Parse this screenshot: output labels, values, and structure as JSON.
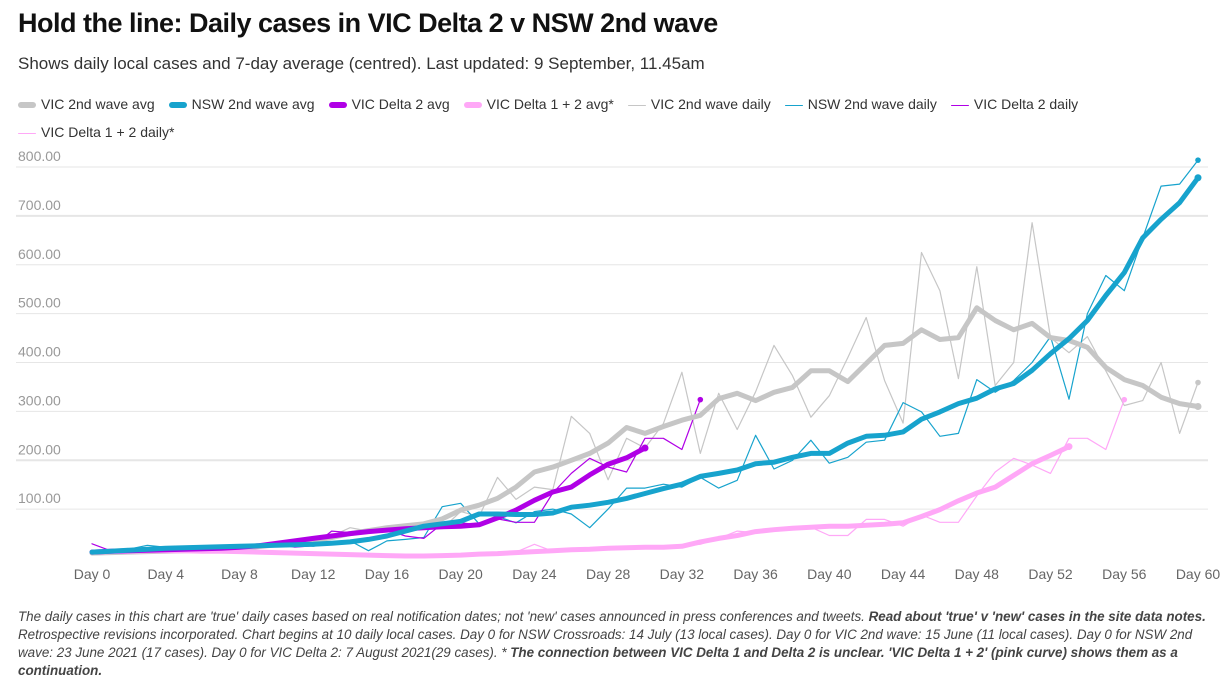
{
  "title": "Hold the line: Daily cases in VIC Delta 2 v NSW 2nd wave",
  "subtitle": "Shows daily local cases and 7-day average (centred). Last updated: 9 September, 11.45am",
  "notes": {
    "p1": "The daily cases in this chart are 'true' daily cases based on real notification dates; not 'new' cases announced in press conferences and tweets. ",
    "b1": "Read about 'true' v 'new' cases in the site data notes.",
    "p2": " Retrospective revisions incorporated. Chart begins at 10 daily local cases. Day 0 for NSW Crossroads: 14 July (13 local cases). Day 0 for VIC 2nd wave: 15 June (11 local cases). Day 0 for NSW 2nd wave: 23 June 2021 (17 cases). Day 0 for VIC Delta 2: 7 August 2021(29 cases). * ",
    "b2": "The connection between VIC Delta 1 and Delta 2 is unclear. 'VIC Delta 1 + 2' (pink curve) shows them as a continuation."
  },
  "chart_data": {
    "type": "line",
    "title": "Hold the line: Daily cases in VIC Delta 2 v NSW 2nd wave",
    "xlabel": "",
    "ylabel": "",
    "xlim": [
      0,
      60
    ],
    "ylim": [
      0,
      800
    ],
    "x_ticks": [
      "Day 0",
      "Day 4",
      "Day 8",
      "Day 12",
      "Day 16",
      "Day 20",
      "Day 24",
      "Day 28",
      "Day 32",
      "Day 36",
      "Day 40",
      "Day 44",
      "Day 48",
      "Day 52",
      "Day 56",
      "Day 60"
    ],
    "y_ticks": [
      "100.00",
      "200.00",
      "300.00",
      "400.00",
      "500.00",
      "600.00",
      "700.00",
      "800.00"
    ],
    "grid": true,
    "legend_position": "top",
    "series": [
      {
        "name": "VIC 2nd wave avg",
        "color": "#c6c6c6",
        "kind": "avg",
        "values": [
          10,
          11,
          12,
          13,
          14,
          15,
          16,
          18,
          20,
          23,
          27,
          31,
          35,
          42,
          50,
          56,
          62,
          66,
          70,
          80,
          98,
          108,
          122,
          145,
          176,
          186,
          200,
          214,
          235,
          267,
          255,
          269,
          282,
          292,
          326,
          337,
          322,
          339,
          349,
          383,
          383,
          361,
          398,
          435,
          439,
          467,
          447,
          451,
          512,
          486,
          467,
          480,
          451,
          445,
          431,
          390,
          365,
          353,
          329,
          316,
          310
        ]
      },
      {
        "name": "NSW 2nd wave avg",
        "color": "#17a3cd",
        "kind": "avg",
        "values": [
          12,
          14,
          16,
          18,
          20,
          21,
          22,
          23,
          24,
          25,
          26,
          27,
          28,
          30,
          33,
          38,
          45,
          55,
          65,
          70,
          75,
          90,
          90,
          89,
          89,
          92,
          104,
          108,
          114,
          122,
          132,
          142,
          151,
          167,
          173,
          180,
          193,
          196,
          206,
          214,
          214,
          235,
          249,
          251,
          258,
          284,
          299,
          316,
          327,
          346,
          357,
          384,
          418,
          449,
          486,
          537,
          584,
          655,
          693,
          727,
          778
        ]
      },
      {
        "name": "VIC Delta 2 avg",
        "color": "#b000e6",
        "kind": "avg",
        "values": [
          12,
          14,
          15,
          16,
          17,
          18,
          19,
          20,
          22,
          25,
          30,
          35,
          40,
          45,
          50,
          54,
          57,
          60,
          62,
          64,
          65,
          68,
          82,
          98,
          118,
          135,
          145,
          170,
          192,
          205,
          225
        ]
      },
      {
        "name": "VIC Delta 1 + 2 avg*",
        "color": "#ffa8f7",
        "kind": "avg",
        "values": [
          12,
          13,
          14,
          15,
          15,
          15,
          14,
          14,
          13,
          12,
          11,
          10,
          9,
          8,
          7,
          6,
          5,
          4,
          4,
          5,
          6,
          8,
          9,
          11,
          13,
          15,
          17,
          18,
          20,
          21,
          22,
          22,
          24,
          33,
          40,
          46,
          54,
          58,
          61,
          63,
          65,
          65,
          67,
          69,
          72,
          85,
          99,
          117,
          133,
          145,
          169,
          193,
          210,
          228
        ]
      },
      {
        "name": "VIC 2nd wave daily",
        "color": "#c6c6c6",
        "kind": "daily",
        "values": [
          11,
          8,
          12,
          14,
          16,
          13,
          18,
          12,
          22,
          20,
          25,
          30,
          38,
          45,
          62,
          55,
          60,
          68,
          72,
          60,
          95,
          85,
          165,
          120,
          145,
          140,
          290,
          255,
          160,
          245,
          225,
          275,
          380,
          214,
          337,
          263,
          340,
          435,
          373,
          288,
          332,
          410,
          492,
          363,
          276,
          625,
          547,
          367,
          596,
          353,
          400,
          686,
          451,
          420,
          453,
          383,
          312,
          322,
          400,
          255,
          359
        ]
      },
      {
        "name": "NSW 2nd wave daily",
        "color": "#17a3cd",
        "kind": "daily",
        "values": [
          10,
          15,
          18,
          26,
          22,
          20,
          18,
          26,
          22,
          28,
          25,
          28,
          24,
          30,
          35,
          15,
          35,
          38,
          42,
          105,
          112,
          70,
          85,
          72,
          95,
          100,
          90,
          62,
          100,
          143,
          143,
          151,
          145,
          165,
          143,
          159,
          251,
          182,
          200,
          241,
          194,
          206,
          237,
          241,
          318,
          299,
          249,
          255,
          365,
          339,
          363,
          400,
          453,
          325,
          500,
          578,
          547,
          655,
          761,
          765,
          814
        ]
      },
      {
        "name": "VIC Delta 2 daily",
        "color": "#b000e6",
        "kind": "daily",
        "values": [
          29,
          15,
          12,
          18,
          14,
          16,
          20,
          18,
          22,
          20,
          28,
          22,
          25,
          55,
          52,
          55,
          58,
          45,
          40,
          70,
          72,
          68,
          80,
          73,
          73,
          133,
          173,
          204,
          186,
          176,
          245,
          245,
          222,
          324
        ]
      },
      {
        "name": "VIC Delta 1 + 2 daily*",
        "color": "#ffa8f7",
        "kind": "daily",
        "values": [
          10,
          12,
          16,
          14,
          13,
          17,
          15,
          12,
          14,
          11,
          12,
          9,
          10,
          7,
          8,
          6,
          5,
          4,
          3,
          6,
          5,
          9,
          8,
          12,
          28,
          14,
          16,
          20,
          18,
          22,
          21,
          20,
          25,
          28,
          40,
          55,
          52,
          56,
          60,
          63,
          46,
          46,
          79,
          79,
          65,
          88,
          73,
          73,
          127,
          176,
          204,
          190,
          173,
          245,
          245,
          222,
          324
        ]
      }
    ]
  }
}
